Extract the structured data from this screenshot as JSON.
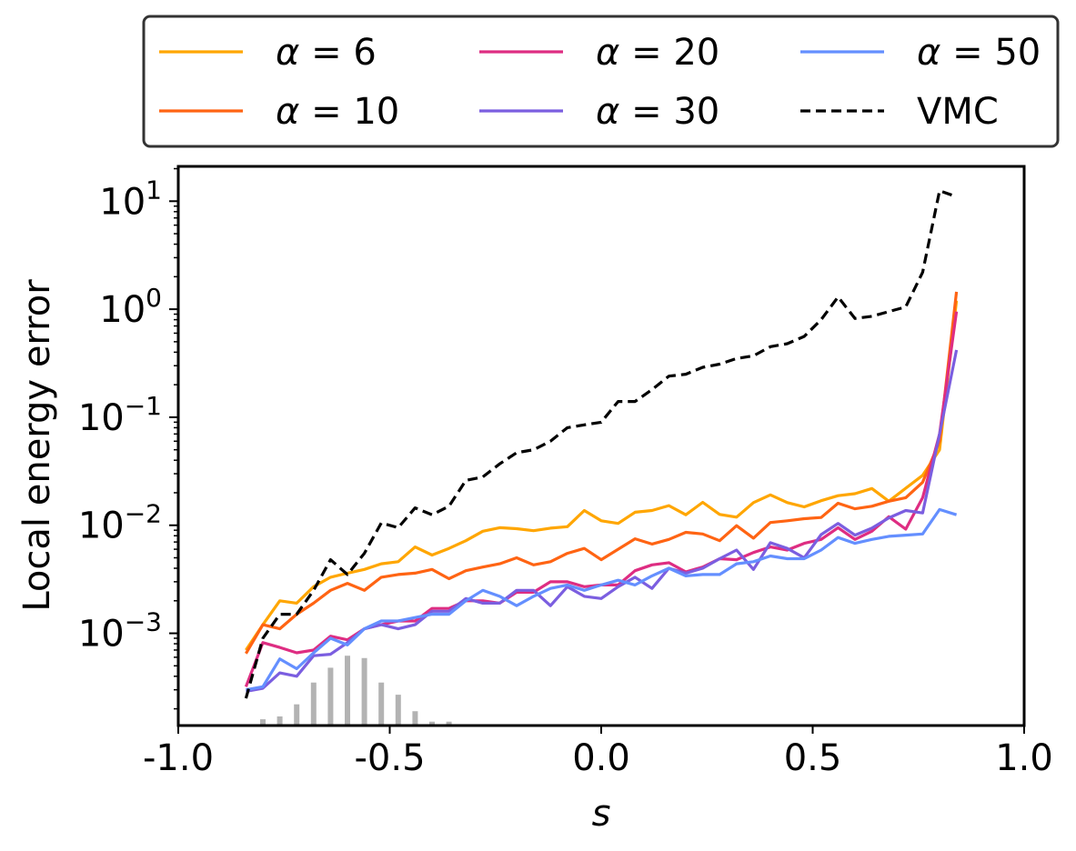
{
  "chart_data": {
    "type": "line",
    "title": "",
    "xlabel": "s",
    "ylabel": "Local energy error",
    "xlim": [
      -1.0,
      1.0
    ],
    "ylim": [
      0.00014,
      21
    ],
    "yscale": "log",
    "grid": false,
    "legend_position": "top, above plot, 3 columns",
    "x_ticks": [
      {
        "value": -1.0,
        "label": "-1.0"
      },
      {
        "value": -0.5,
        "label": "-0.5"
      },
      {
        "value": 0.0,
        "label": "0.0"
      },
      {
        "value": 0.5,
        "label": "0.5"
      },
      {
        "value": 1.0,
        "label": "1.0"
      }
    ],
    "y_ticks": [
      {
        "value": 0.001,
        "base": "10",
        "exp": "−3"
      },
      {
        "value": 0.01,
        "base": "10",
        "exp": "−2"
      },
      {
        "value": 0.1,
        "base": "10",
        "exp": "−1"
      },
      {
        "value": 1,
        "base": "10",
        "exp": "0"
      },
      {
        "value": 10,
        "base": "10",
        "exp": "1"
      }
    ],
    "series": [
      {
        "name": "α = 6",
        "legend_sym": "α",
        "legend_val": "= 6",
        "color": "#ffa600",
        "dash": "solid",
        "x": [
          -0.84,
          -0.8,
          -0.76,
          -0.72,
          -0.68,
          -0.64,
          -0.6,
          -0.56,
          -0.52,
          -0.48,
          -0.44,
          -0.4,
          -0.36,
          -0.32,
          -0.28,
          -0.24,
          -0.2,
          -0.16,
          -0.12,
          -0.08,
          -0.04,
          0.0,
          0.04,
          0.08,
          0.12,
          0.16,
          0.2,
          0.24,
          0.28,
          0.32,
          0.36,
          0.4,
          0.44,
          0.48,
          0.52,
          0.56,
          0.6,
          0.64,
          0.68,
          0.72,
          0.76,
          0.8,
          0.84
        ],
        "y": [
          0.0007,
          0.0012,
          0.002,
          0.0019,
          0.0027,
          0.0033,
          0.0036,
          0.0039,
          0.0044,
          0.0046,
          0.0063,
          0.0053,
          0.0061,
          0.0072,
          0.0088,
          0.0095,
          0.0093,
          0.0089,
          0.0094,
          0.0097,
          0.0137,
          0.011,
          0.0104,
          0.0132,
          0.0137,
          0.0152,
          0.0125,
          0.0163,
          0.0126,
          0.0119,
          0.0162,
          0.0191,
          0.0162,
          0.0148,
          0.0169,
          0.0188,
          0.0196,
          0.0219,
          0.0167,
          0.022,
          0.029,
          0.05,
          1.2
        ]
      },
      {
        "name": "α = 10",
        "legend_sym": "α",
        "legend_val": "= 10",
        "color": "#ff6413",
        "dash": "solid",
        "x": [
          -0.84,
          -0.8,
          -0.76,
          -0.72,
          -0.68,
          -0.64,
          -0.6,
          -0.56,
          -0.52,
          -0.48,
          -0.44,
          -0.4,
          -0.36,
          -0.32,
          -0.28,
          -0.24,
          -0.2,
          -0.16,
          -0.12,
          -0.08,
          -0.04,
          0.0,
          0.04,
          0.08,
          0.12,
          0.16,
          0.2,
          0.24,
          0.28,
          0.32,
          0.36,
          0.4,
          0.44,
          0.48,
          0.52,
          0.56,
          0.6,
          0.64,
          0.68,
          0.72,
          0.76,
          0.8,
          0.84
        ],
        "y": [
          0.00065,
          0.0012,
          0.0011,
          0.0015,
          0.0019,
          0.0025,
          0.0029,
          0.0025,
          0.0033,
          0.0035,
          0.0036,
          0.0039,
          0.0032,
          0.0038,
          0.0041,
          0.0044,
          0.005,
          0.0043,
          0.0046,
          0.0055,
          0.0061,
          0.0048,
          0.006,
          0.0075,
          0.0067,
          0.0074,
          0.0086,
          0.0083,
          0.0072,
          0.0099,
          0.0076,
          0.0106,
          0.011,
          0.0115,
          0.0118,
          0.016,
          0.0142,
          0.015,
          0.0167,
          0.018,
          0.025,
          0.06,
          1.45
        ]
      },
      {
        "name": "α = 20",
        "legend_sym": "α",
        "legend_val": "= 20",
        "color": "#de2d82",
        "dash": "solid",
        "x": [
          -0.84,
          -0.8,
          -0.76,
          -0.72,
          -0.68,
          -0.64,
          -0.6,
          -0.56,
          -0.52,
          -0.48,
          -0.44,
          -0.4,
          -0.36,
          -0.32,
          -0.28,
          -0.24,
          -0.2,
          -0.16,
          -0.12,
          -0.08,
          -0.04,
          0.0,
          0.04,
          0.08,
          0.12,
          0.16,
          0.2,
          0.24,
          0.28,
          0.32,
          0.36,
          0.4,
          0.44,
          0.48,
          0.52,
          0.56,
          0.6,
          0.64,
          0.68,
          0.72,
          0.76,
          0.8,
          0.84
        ],
        "y": [
          0.00032,
          0.00082,
          0.00074,
          0.00066,
          0.0007,
          0.00094,
          0.00087,
          0.0011,
          0.0012,
          0.0013,
          0.0013,
          0.0017,
          0.0017,
          0.002,
          0.002,
          0.0019,
          0.0024,
          0.0024,
          0.003,
          0.003,
          0.0027,
          0.0028,
          0.0028,
          0.0038,
          0.0043,
          0.0045,
          0.0037,
          0.0041,
          0.0049,
          0.0048,
          0.0056,
          0.0063,
          0.0059,
          0.0068,
          0.0074,
          0.0095,
          0.0074,
          0.0088,
          0.012,
          0.0092,
          0.018,
          0.07,
          0.95
        ]
      },
      {
        "name": "α = 30",
        "legend_sym": "α",
        "legend_val": "= 30",
        "color": "#7b5ee0",
        "dash": "solid",
        "x": [
          -0.84,
          -0.8,
          -0.76,
          -0.72,
          -0.68,
          -0.64,
          -0.6,
          -0.56,
          -0.52,
          -0.48,
          -0.44,
          -0.4,
          -0.36,
          -0.32,
          -0.28,
          -0.24,
          -0.2,
          -0.16,
          -0.12,
          -0.08,
          -0.04,
          0.0,
          0.04,
          0.08,
          0.12,
          0.16,
          0.2,
          0.24,
          0.28,
          0.32,
          0.36,
          0.4,
          0.44,
          0.48,
          0.52,
          0.56,
          0.6,
          0.64,
          0.68,
          0.72,
          0.76,
          0.8,
          0.84
        ],
        "y": [
          0.00029,
          0.00031,
          0.00043,
          0.0004,
          0.00062,
          0.00064,
          0.00082,
          0.0011,
          0.0012,
          0.0011,
          0.0012,
          0.0016,
          0.0016,
          0.0021,
          0.0019,
          0.0019,
          0.0025,
          0.0025,
          0.0018,
          0.0027,
          0.0022,
          0.0021,
          0.0027,
          0.0033,
          0.0026,
          0.004,
          0.0036,
          0.004,
          0.0049,
          0.0059,
          0.0039,
          0.0069,
          0.0061,
          0.005,
          0.0082,
          0.0104,
          0.0081,
          0.0094,
          0.0117,
          0.0137,
          0.013,
          0.07,
          0.42
        ]
      },
      {
        "name": "α = 50",
        "legend_sym": "α",
        "legend_val": "= 50",
        "color": "#648fff",
        "dash": "solid",
        "x": [
          -0.84,
          -0.8,
          -0.76,
          -0.72,
          -0.68,
          -0.64,
          -0.6,
          -0.56,
          -0.52,
          -0.48,
          -0.44,
          -0.4,
          -0.36,
          -0.32,
          -0.28,
          -0.24,
          -0.2,
          -0.16,
          -0.12,
          -0.08,
          -0.04,
          0.0,
          0.04,
          0.08,
          0.12,
          0.16,
          0.2,
          0.24,
          0.28,
          0.32,
          0.36,
          0.4,
          0.44,
          0.48,
          0.52,
          0.56,
          0.6,
          0.64,
          0.68,
          0.72,
          0.76,
          0.8,
          0.84
        ],
        "y": [
          0.0003,
          0.00032,
          0.00058,
          0.00047,
          0.00066,
          0.0009,
          0.00078,
          0.0011,
          0.0013,
          0.0013,
          0.0014,
          0.0015,
          0.0015,
          0.002,
          0.0025,
          0.0022,
          0.0018,
          0.0022,
          0.0026,
          0.0028,
          0.0025,
          0.0028,
          0.0031,
          0.0028,
          0.0034,
          0.004,
          0.0034,
          0.0035,
          0.0035,
          0.0044,
          0.0046,
          0.0052,
          0.0049,
          0.0049,
          0.0059,
          0.0077,
          0.0068,
          0.0074,
          0.0079,
          0.0081,
          0.0083,
          0.014,
          0.0125
        ]
      },
      {
        "name": "VMC",
        "legend_sym": "",
        "legend_val": "VMC",
        "color": "#000000",
        "dash": "dashed",
        "x": [
          -0.84,
          -0.8,
          -0.76,
          -0.72,
          -0.68,
          -0.64,
          -0.6,
          -0.56,
          -0.52,
          -0.48,
          -0.44,
          -0.4,
          -0.36,
          -0.32,
          -0.28,
          -0.24,
          -0.2,
          -0.16,
          -0.12,
          -0.08,
          -0.04,
          0.0,
          0.04,
          0.08,
          0.12,
          0.16,
          0.2,
          0.24,
          0.28,
          0.32,
          0.36,
          0.4,
          0.44,
          0.48,
          0.52,
          0.56,
          0.6,
          0.64,
          0.68,
          0.72,
          0.76,
          0.8,
          0.84
        ],
        "y": [
          0.00025,
          0.0009,
          0.0015,
          0.0015,
          0.0025,
          0.0048,
          0.0035,
          0.0055,
          0.0105,
          0.0095,
          0.0145,
          0.0125,
          0.015,
          0.026,
          0.028,
          0.037,
          0.047,
          0.05,
          0.06,
          0.08,
          0.085,
          0.09,
          0.14,
          0.14,
          0.18,
          0.24,
          0.25,
          0.29,
          0.31,
          0.35,
          0.37,
          0.45,
          0.48,
          0.56,
          0.8,
          1.3,
          0.82,
          0.86,
          0.95,
          1.05,
          2.2,
          12.5,
          11.0
        ]
      }
    ],
    "histogram": {
      "color": "#b3b3b3",
      "note": "sample distribution of s (unitless, bar heights in data units of the log axis)",
      "x": [
        -0.8,
        -0.76,
        -0.72,
        -0.68,
        -0.64,
        -0.6,
        -0.56,
        -0.52,
        -0.48,
        -0.44,
        -0.4,
        -0.36
      ],
      "top": [
        0.00016,
        0.00017,
        0.00022,
        0.00035,
        0.00048,
        0.00062,
        0.00059,
        0.00035,
        0.00027,
        0.00019,
        0.000152,
        0.000152
      ]
    }
  }
}
